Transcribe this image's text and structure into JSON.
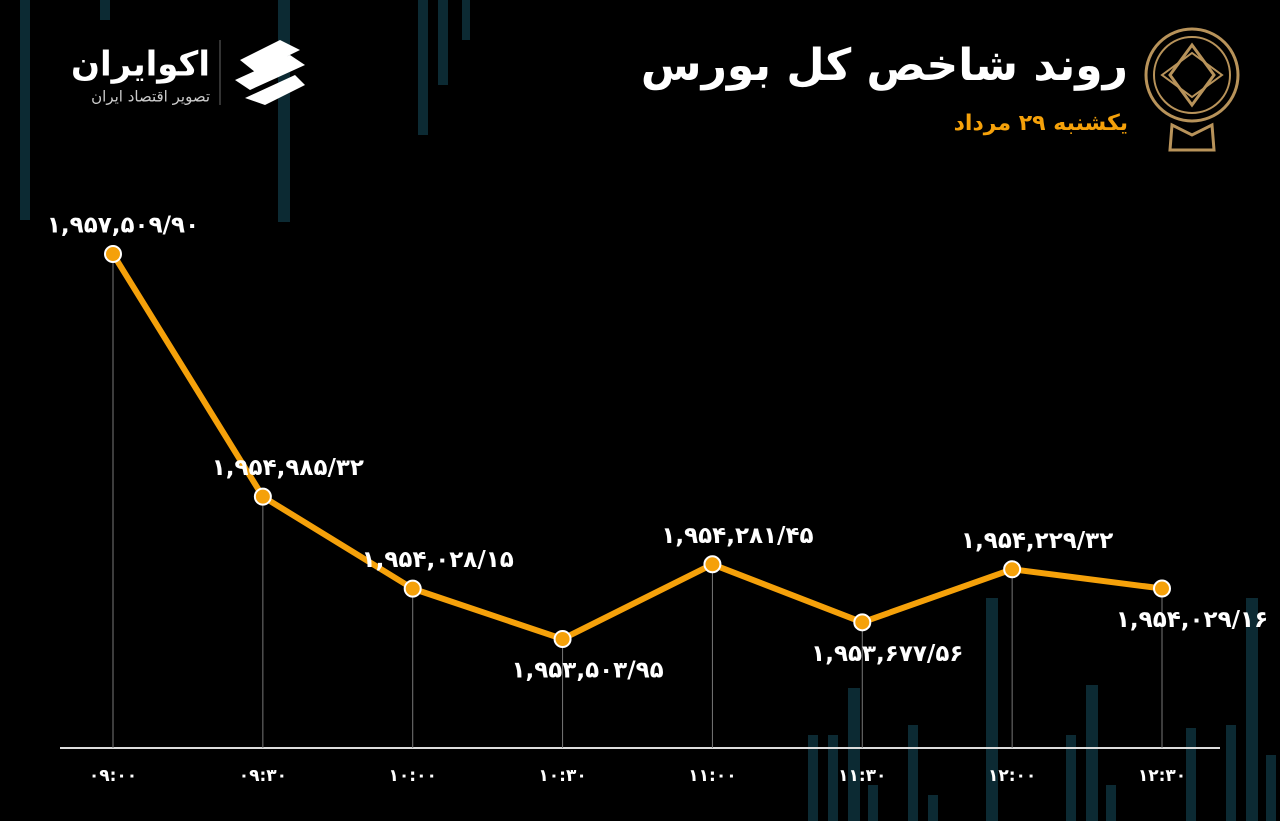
{
  "brand": {
    "name": "اکوایران",
    "tagline": "تصویر اقتصاد ایران"
  },
  "chart_data": {
    "type": "line",
    "title": "روند شاخص کل بورس",
    "subtitle": "یکشنبه ۲۹ مرداد",
    "categories": [
      "۰۹:۰۰",
      "۰۹:۳۰",
      "۱۰:۰۰",
      "۱۰:۳۰",
      "۱۱:۰۰",
      "۱۱:۳۰",
      "۱۲:۰۰",
      "۱۲:۳۰"
    ],
    "series": [
      {
        "color": "#f5a10a",
        "values": [
          1957509.9,
          1954985.32,
          1954028.15,
          1953503.95,
          1954281.45,
          1953677.56,
          1954229.32,
          1954029.16
        ],
        "value_labels": [
          "۱,۹۵۷,۵۰۹/۹۰",
          "۱,۹۵۴,۹۸۵/۳۲",
          "۱,۹۵۴,۰۲۸/۱۵",
          "۱,۹۵۳,۵۰۳/۹۵",
          "۱,۹۵۴,۲۸۱/۴۵",
          "۱,۹۵۳,۶۷۷/۵۶",
          "۱,۹۵۴,۲۲۹/۳۲",
          "۱,۹۵۴,۰۲۹/۱۶"
        ]
      }
    ]
  }
}
